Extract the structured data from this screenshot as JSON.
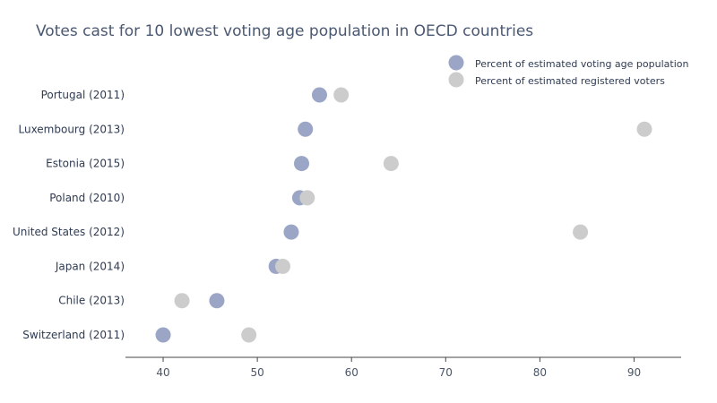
{
  "chart_data": {
    "type": "scatter",
    "title": "Votes cast for 10 lowest voting age population in OECD countries",
    "xlabel": "",
    "ylabel": "",
    "xlim": [
      36,
      95
    ],
    "x_ticks": [
      40,
      50,
      60,
      70,
      80,
      90
    ],
    "categories": [
      "Switzerland (2011)",
      "Chile (2013)",
      "Japan (2014)",
      "United States (2012)",
      "Poland (2010)",
      "Estonia (2015)",
      "Luxembourg (2013)",
      "Portugal (2011)"
    ],
    "series": [
      {
        "name": "Percent of estimated voting age population",
        "color": "#9ba5c5",
        "values": [
          40.0,
          45.7,
          52.0,
          53.6,
          54.5,
          54.7,
          55.1,
          56.6
        ]
      },
      {
        "name": "Percent of estimated registered voters",
        "color": "#cccccc",
        "values": [
          49.1,
          42.0,
          52.7,
          84.3,
          55.3,
          64.2,
          91.1,
          58.9
        ]
      }
    ],
    "legend_position": "top-right",
    "grid": false
  }
}
